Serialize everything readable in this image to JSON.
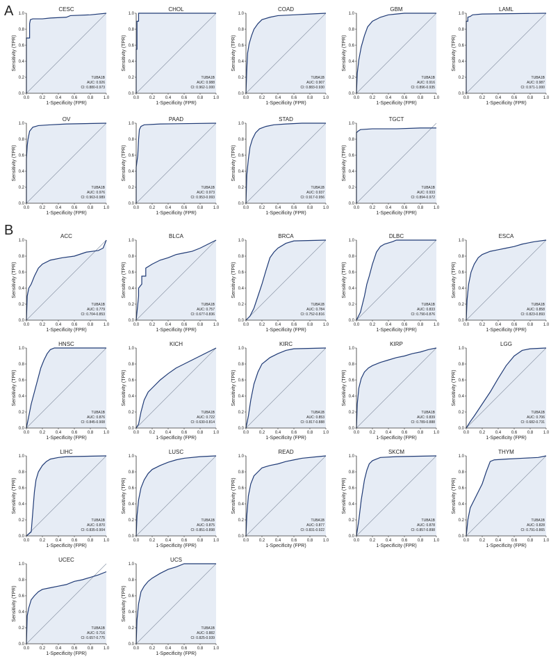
{
  "panels": [
    {
      "label": "A"
    },
    {
      "label": "B"
    }
  ],
  "style": {
    "line_color": "#1f3a75",
    "fill_color": "#e6ecf5",
    "diag_color": "#8c96a8"
  },
  "chart_data": [
    {
      "type": "line",
      "panel": "A",
      "title": "CESC",
      "xlabel": "1-Specificity (FPR)",
      "ylabel": "Sensitivity (TPR)",
      "xlim": [
        0,
        1
      ],
      "ylim": [
        0,
        1
      ],
      "annotation": {
        "gene": "TUBA1B",
        "auc": "AUC: 0.926",
        "ci": "CI: 0.880-0.973"
      },
      "x": [
        0,
        0,
        0.04,
        0.04,
        0.05,
        0.08,
        0.12,
        0.2,
        0.3,
        0.5,
        0.55,
        0.8,
        1
      ],
      "y": [
        0,
        0.69,
        0.69,
        0.87,
        0.92,
        0.93,
        0.93,
        0.93,
        0.94,
        0.95,
        0.97,
        0.98,
        1
      ]
    },
    {
      "type": "line",
      "panel": "A",
      "title": "CHOL",
      "xlabel": "1-Specificity (FPR)",
      "ylabel": "Sensitivity (TPR)",
      "xlim": [
        0,
        1
      ],
      "ylim": [
        0,
        1
      ],
      "annotation": {
        "gene": "TUBA1B",
        "auc": "AUC: 0.988",
        "ci": "CI: 0.962-1.000"
      },
      "x": [
        0,
        0,
        0.01,
        0.01,
        0.03,
        0.03,
        0.5,
        1
      ],
      "y": [
        0,
        0.55,
        0.55,
        0.9,
        0.9,
        1,
        1,
        1
      ]
    },
    {
      "type": "line",
      "panel": "A",
      "title": "COAD",
      "xlabel": "1-Specificity (FPR)",
      "ylabel": "Sensitivity (TPR)",
      "xlim": [
        0,
        1
      ],
      "ylim": [
        0,
        1
      ],
      "annotation": {
        "gene": "TUBA1B",
        "auc": "AUC: 0.907",
        "ci": "CI: 0.883-0.930"
      },
      "x": [
        0,
        0.01,
        0.02,
        0.04,
        0.07,
        0.1,
        0.15,
        0.2,
        0.3,
        0.4,
        0.6,
        0.8,
        1
      ],
      "y": [
        0,
        0.3,
        0.5,
        0.62,
        0.72,
        0.8,
        0.87,
        0.92,
        0.95,
        0.97,
        0.98,
        0.99,
        1
      ]
    },
    {
      "type": "line",
      "panel": "A",
      "title": "GBM",
      "xlabel": "1-Specificity (FPR)",
      "ylabel": "Sensitivity (TPR)",
      "xlim": [
        0,
        1
      ],
      "ylim": [
        0,
        1
      ],
      "annotation": {
        "gene": "TUBA1B",
        "auc": "AUC: 0.916",
        "ci": "CI: 0.896-0.935"
      },
      "x": [
        0,
        0.01,
        0.03,
        0.06,
        0.1,
        0.14,
        0.2,
        0.3,
        0.4,
        0.5,
        0.6,
        1
      ],
      "y": [
        0,
        0.25,
        0.42,
        0.58,
        0.72,
        0.83,
        0.9,
        0.95,
        0.98,
        0.99,
        1,
        1
      ]
    },
    {
      "type": "line",
      "panel": "A",
      "title": "LAML",
      "xlabel": "1-Specificity (FPR)",
      "ylabel": "Sensitivity (TPR)",
      "xlim": [
        0,
        1
      ],
      "ylim": [
        0,
        1
      ],
      "annotation": {
        "gene": "TUBA1B",
        "auc": "AUC: 0.987",
        "ci": "CI: 0.971-1.000"
      },
      "x": [
        0,
        0,
        0.02,
        0.02,
        0.05,
        0.08,
        0.2,
        1
      ],
      "y": [
        0,
        0.9,
        0.9,
        0.95,
        0.96,
        0.98,
        0.99,
        1
      ]
    },
    {
      "type": "line",
      "panel": "A",
      "title": "OV",
      "xlabel": "1-Specificity (FPR)",
      "ylabel": "Sensitivity (TPR)",
      "xlim": [
        0,
        1
      ],
      "ylim": [
        0,
        1
      ],
      "annotation": {
        "gene": "TUBA1B",
        "auc": "AUC: 0.976",
        "ci": "CI: 0.963-0.989"
      },
      "x": [
        0,
        0,
        0.01,
        0.02,
        0.04,
        0.08,
        0.15,
        0.3,
        0.5,
        1
      ],
      "y": [
        0,
        0.55,
        0.72,
        0.8,
        0.9,
        0.95,
        0.97,
        0.98,
        0.99,
        1
      ]
    },
    {
      "type": "line",
      "panel": "A",
      "title": "PAAD",
      "xlabel": "1-Specificity (FPR)",
      "ylabel": "Sensitivity (TPR)",
      "xlim": [
        0,
        1
      ],
      "ylim": [
        0,
        1
      ],
      "annotation": {
        "gene": "TUBA1B",
        "auc": "AUC: 0.973",
        "ci": "CI: 0.953-0.993"
      },
      "x": [
        0,
        0,
        0.02,
        0.03,
        0.04,
        0.06,
        0.1,
        0.3,
        1
      ],
      "y": [
        0,
        0.45,
        0.6,
        0.8,
        0.92,
        0.96,
        0.98,
        0.99,
        1
      ]
    },
    {
      "type": "line",
      "panel": "A",
      "title": "STAD",
      "xlabel": "1-Specificity (FPR)",
      "ylabel": "Sensitivity (TPR)",
      "xlim": [
        0,
        1
      ],
      "ylim": [
        0,
        1
      ],
      "annotation": {
        "gene": "TUBA1B",
        "auc": "AUC: 0.937",
        "ci": "CI: 0.917-0.956"
      },
      "x": [
        0,
        0.01,
        0.03,
        0.05,
        0.08,
        0.12,
        0.17,
        0.25,
        0.35,
        0.5,
        0.7,
        1
      ],
      "y": [
        0,
        0.35,
        0.55,
        0.7,
        0.8,
        0.88,
        0.93,
        0.96,
        0.98,
        0.99,
        1,
        1
      ]
    },
    {
      "type": "line",
      "panel": "A",
      "title": "TGCT",
      "xlabel": "1-Specificity (FPR)",
      "ylabel": "Sensitivity (TPR)",
      "xlim": [
        0,
        1
      ],
      "ylim": [
        0,
        1
      ],
      "annotation": {
        "gene": "TUBA1B",
        "auc": "AUC: 0.933",
        "ci": "CI: 0.894-0.972"
      },
      "x": [
        0,
        0,
        0.02,
        0.05,
        0.2,
        0.5,
        0.8,
        1
      ],
      "y": [
        0,
        0.88,
        0.9,
        0.92,
        0.93,
        0.93,
        0.94,
        0.94
      ]
    },
    {
      "type": "line",
      "panel": "B",
      "title": "ACC",
      "xlabel": "1-Specificity (FPR)",
      "ylabel": "Sensitivity (TPR)",
      "xlim": [
        0,
        1
      ],
      "ylim": [
        0,
        1
      ],
      "annotation": {
        "gene": "TUBA1B",
        "auc": "AUC: 0.779",
        "ci": "CI: 0.704-0.853"
      },
      "x": [
        0,
        0.01,
        0.03,
        0.06,
        0.1,
        0.15,
        0.2,
        0.3,
        0.45,
        0.6,
        0.75,
        0.9,
        0.96,
        1
      ],
      "y": [
        0,
        0.3,
        0.4,
        0.45,
        0.55,
        0.65,
        0.7,
        0.75,
        0.78,
        0.8,
        0.85,
        0.87,
        0.9,
        1
      ]
    },
    {
      "type": "line",
      "panel": "B",
      "title": "BLCA",
      "xlabel": "1-Specificity (FPR)",
      "ylabel": "Sensitivity (TPR)",
      "xlim": [
        0,
        1
      ],
      "ylim": [
        0,
        1
      ],
      "annotation": {
        "gene": "TUBA1B",
        "auc": "AUC: 0.757",
        "ci": "CI: 0.677-0.836"
      },
      "x": [
        0,
        0.03,
        0.03,
        0.07,
        0.07,
        0.12,
        0.12,
        0.2,
        0.3,
        0.4,
        0.5,
        0.6,
        0.7,
        0.8,
        0.9,
        1
      ],
      "y": [
        0,
        0.3,
        0.4,
        0.45,
        0.55,
        0.55,
        0.65,
        0.7,
        0.75,
        0.78,
        0.82,
        0.84,
        0.86,
        0.9,
        0.95,
        1
      ]
    },
    {
      "type": "line",
      "panel": "B",
      "title": "BRCA",
      "xlabel": "1-Specificity (FPR)",
      "ylabel": "Sensitivity (TPR)",
      "xlim": [
        0,
        1
      ],
      "ylim": [
        0,
        1
      ],
      "annotation": {
        "gene": "TUBA1B",
        "auc": "AUC: 0.784",
        "ci": "CI: 0.752-0.816"
      },
      "x": [
        0,
        0.05,
        0.1,
        0.15,
        0.2,
        0.25,
        0.3,
        0.35,
        0.4,
        0.5,
        0.6,
        1
      ],
      "y": [
        0,
        0.05,
        0.15,
        0.3,
        0.45,
        0.62,
        0.78,
        0.85,
        0.9,
        0.96,
        0.99,
        1
      ]
    },
    {
      "type": "line",
      "panel": "B",
      "title": "DLBC",
      "xlabel": "1-Specificity (FPR)",
      "ylabel": "Sensitivity (TPR)",
      "xlim": [
        0,
        1
      ],
      "ylim": [
        0,
        1
      ],
      "annotation": {
        "gene": "TUBA1B",
        "auc": "AUC: 0.833",
        "ci": "CI: 0.790-0.876"
      },
      "x": [
        0,
        0.05,
        0.1,
        0.13,
        0.16,
        0.2,
        0.25,
        0.3,
        0.35,
        0.45,
        0.5,
        1
      ],
      "y": [
        0,
        0.1,
        0.3,
        0.45,
        0.55,
        0.7,
        0.85,
        0.92,
        0.95,
        0.98,
        1,
        1
      ]
    },
    {
      "type": "line",
      "panel": "B",
      "title": "ESCA",
      "xlabel": "1-Specificity (FPR)",
      "ylabel": "Sensitivity (TPR)",
      "xlim": [
        0,
        1
      ],
      "ylim": [
        0,
        1
      ],
      "annotation": {
        "gene": "TUBA1B",
        "auc": "AUC: 0.858",
        "ci": "CI: 0.823-0.893"
      },
      "x": [
        0,
        0.01,
        0.03,
        0.06,
        0.1,
        0.15,
        0.2,
        0.3,
        0.4,
        0.5,
        0.6,
        0.7,
        0.85,
        1
      ],
      "y": [
        0,
        0.25,
        0.45,
        0.6,
        0.7,
        0.78,
        0.82,
        0.86,
        0.88,
        0.9,
        0.92,
        0.95,
        0.98,
        1
      ]
    },
    {
      "type": "line",
      "panel": "B",
      "title": "HNSC",
      "xlabel": "1-Specificity (FPR)",
      "ylabel": "Sensitivity (TPR)",
      "xlim": [
        0,
        1
      ],
      "ylim": [
        0,
        1
      ],
      "annotation": {
        "gene": "TUBA1B",
        "auc": "AUC: 0.876",
        "ci": "CI: 0.845-0.908"
      },
      "x": [
        0,
        0.03,
        0.06,
        0.1,
        0.14,
        0.18,
        0.22,
        0.26,
        0.3,
        0.35,
        1
      ],
      "y": [
        0,
        0.15,
        0.3,
        0.45,
        0.6,
        0.75,
        0.85,
        0.93,
        0.98,
        1,
        1
      ]
    },
    {
      "type": "line",
      "panel": "B",
      "title": "KICH",
      "xlabel": "1-Specificity (FPR)",
      "ylabel": "Sensitivity (TPR)",
      "xlim": [
        0,
        1
      ],
      "ylim": [
        0,
        1
      ],
      "annotation": {
        "gene": "TUBA1B",
        "auc": "AUC: 0.722",
        "ci": "CI: 0.630-0.814"
      },
      "x": [
        0,
        0.03,
        0.06,
        0.1,
        0.15,
        0.2,
        0.3,
        0.4,
        0.5,
        0.6,
        0.7,
        0.8,
        0.9,
        1
      ],
      "y": [
        0,
        0.05,
        0.2,
        0.35,
        0.45,
        0.5,
        0.6,
        0.68,
        0.75,
        0.8,
        0.85,
        0.9,
        0.95,
        1
      ]
    },
    {
      "type": "line",
      "panel": "B",
      "title": "KIRC",
      "xlabel": "1-Specificity (FPR)",
      "ylabel": "Sensitivity (TPR)",
      "xlim": [
        0,
        1
      ],
      "ylim": [
        0,
        1
      ],
      "annotation": {
        "gene": "TUBA1B",
        "auc": "AUC: 0.853",
        "ci": "CI: 0.817-0.888"
      },
      "x": [
        0,
        0.03,
        0.06,
        0.1,
        0.15,
        0.2,
        0.3,
        0.4,
        0.5,
        0.6,
        1
      ],
      "y": [
        0,
        0.15,
        0.35,
        0.55,
        0.7,
        0.8,
        0.88,
        0.93,
        0.97,
        0.99,
        1
      ]
    },
    {
      "type": "line",
      "panel": "B",
      "title": "KIRP",
      "xlabel": "1-Specificity (FPR)",
      "ylabel": "Sensitivity (TPR)",
      "xlim": [
        0,
        1
      ],
      "ylim": [
        0,
        1
      ],
      "annotation": {
        "gene": "TUBA1B",
        "auc": "AUC: 0.839",
        "ci": "CI: 0.789-0.888"
      },
      "x": [
        0,
        0.01,
        0.03,
        0.06,
        0.1,
        0.15,
        0.2,
        0.3,
        0.4,
        0.5,
        0.6,
        0.7,
        0.8,
        0.9,
        1
      ],
      "y": [
        0,
        0.3,
        0.5,
        0.62,
        0.7,
        0.75,
        0.78,
        0.82,
        0.85,
        0.88,
        0.9,
        0.93,
        0.95,
        0.98,
        1
      ]
    },
    {
      "type": "line",
      "panel": "B",
      "title": "LGG",
      "xlabel": "1-Specificity (FPR)",
      "ylabel": "Sensitivity (TPR)",
      "xlim": [
        0,
        1
      ],
      "ylim": [
        0,
        1
      ],
      "annotation": {
        "gene": "TUBA1B",
        "auc": "AUC: 0.706",
        "ci": "CI: 0.682-0.731"
      },
      "x": [
        0,
        0.05,
        0.1,
        0.2,
        0.3,
        0.4,
        0.5,
        0.6,
        0.7,
        0.8,
        1
      ],
      "y": [
        0,
        0.08,
        0.15,
        0.3,
        0.45,
        0.62,
        0.78,
        0.9,
        0.97,
        0.99,
        1
      ]
    },
    {
      "type": "line",
      "panel": "B",
      "title": "LIHC",
      "xlabel": "1-Specificity (FPR)",
      "ylabel": "Sensitivity (TPR)",
      "xlim": [
        0,
        1
      ],
      "ylim": [
        0,
        1
      ],
      "annotation": {
        "gene": "TUBA1B",
        "auc": "AUC: 0.870",
        "ci": "CI: 0.835-0.904"
      },
      "x": [
        0,
        0.06,
        0.08,
        0.1,
        0.12,
        0.15,
        0.2,
        0.25,
        0.3,
        0.4,
        0.5,
        1
      ],
      "y": [
        0,
        0.05,
        0.3,
        0.55,
        0.7,
        0.8,
        0.88,
        0.93,
        0.96,
        0.98,
        0.99,
        1
      ]
    },
    {
      "type": "line",
      "panel": "B",
      "title": "LUSC",
      "xlabel": "1-Specificity (FPR)",
      "ylabel": "Sensitivity (TPR)",
      "xlim": [
        0,
        1
      ],
      "ylim": [
        0,
        1
      ],
      "annotation": {
        "gene": "TUBA1B",
        "auc": "AUC: 0.875",
        "ci": "CI: 0.851-0.898"
      },
      "x": [
        0,
        0.01,
        0.03,
        0.06,
        0.1,
        0.15,
        0.2,
        0.3,
        0.4,
        0.5,
        0.6,
        0.8,
        1
      ],
      "y": [
        0,
        0.25,
        0.45,
        0.6,
        0.7,
        0.78,
        0.83,
        0.88,
        0.92,
        0.95,
        0.97,
        0.99,
        1
      ]
    },
    {
      "type": "line",
      "panel": "B",
      "title": "READ",
      "xlabel": "1-Specificity (FPR)",
      "ylabel": "Sensitivity (TPR)",
      "xlim": [
        0,
        1
      ],
      "ylim": [
        0,
        1
      ],
      "annotation": {
        "gene": "TUBA1B",
        "auc": "AUC: 0.877",
        "ci": "CI: 0.831-0.922"
      },
      "x": [
        0,
        0.01,
        0.03,
        0.06,
        0.1,
        0.15,
        0.2,
        0.3,
        0.4,
        0.5,
        0.6,
        0.7,
        0.9,
        1
      ],
      "y": [
        0,
        0.25,
        0.5,
        0.65,
        0.75,
        0.8,
        0.85,
        0.88,
        0.9,
        0.93,
        0.95,
        0.97,
        0.99,
        1
      ]
    },
    {
      "type": "line",
      "panel": "B",
      "title": "SKCM",
      "xlabel": "1-Specificity (FPR)",
      "ylabel": "Sensitivity (TPR)",
      "xlim": [
        0,
        1
      ],
      "ylim": [
        0,
        1
      ],
      "annotation": {
        "gene": "TUBA1B",
        "auc": "AUC: 0.878",
        "ci": "CI: 0.857-0.898"
      },
      "x": [
        0,
        0.03,
        0.06,
        0.1,
        0.13,
        0.16,
        0.2,
        0.25,
        0.3,
        0.5,
        1
      ],
      "y": [
        0,
        0.2,
        0.45,
        0.7,
        0.82,
        0.9,
        0.94,
        0.96,
        0.98,
        0.99,
        1
      ]
    },
    {
      "type": "line",
      "panel": "B",
      "title": "THYM",
      "xlabel": "1-Specificity (FPR)",
      "ylabel": "Sensitivity (TPR)",
      "xlim": [
        0,
        1
      ],
      "ylim": [
        0,
        1
      ],
      "annotation": {
        "gene": "TUBA1B",
        "auc": "AUC: 0.828",
        "ci": "CI: 0.791-0.865"
      },
      "x": [
        0,
        0.02,
        0.05,
        0.1,
        0.15,
        0.2,
        0.25,
        0.3,
        0.35,
        0.5,
        0.7,
        0.9,
        1
      ],
      "y": [
        0,
        0.2,
        0.35,
        0.45,
        0.55,
        0.65,
        0.8,
        0.93,
        0.95,
        0.96,
        0.97,
        0.98,
        1
      ]
    },
    {
      "type": "line",
      "panel": "B",
      "title": "UCEC",
      "xlabel": "1-Specificity (FPR)",
      "ylabel": "Sensitivity (TPR)",
      "xlim": [
        0,
        1
      ],
      "ylim": [
        0,
        1
      ],
      "annotation": {
        "gene": "TUBA1B",
        "auc": "AUC: 0.716",
        "ci": "CI: 0.657-0.775"
      },
      "x": [
        0,
        0.01,
        0.03,
        0.06,
        0.1,
        0.15,
        0.2,
        0.3,
        0.4,
        0.5,
        0.6,
        0.7,
        0.8,
        0.9,
        1
      ],
      "y": [
        0,
        0.35,
        0.45,
        0.55,
        0.6,
        0.65,
        0.68,
        0.7,
        0.72,
        0.74,
        0.78,
        0.8,
        0.83,
        0.86,
        0.9
      ]
    },
    {
      "type": "line",
      "panel": "B",
      "title": "UCS",
      "xlabel": "1-Specificity (FPR)",
      "ylabel": "Sensitivity (TPR)",
      "xlim": [
        0,
        1
      ],
      "ylim": [
        0,
        1
      ],
      "annotation": {
        "gene": "TUBA1B",
        "auc": "AUC: 0.882",
        "ci": "CI: 0.825-0.939"
      },
      "x": [
        0,
        0.01,
        0.03,
        0.06,
        0.1,
        0.15,
        0.2,
        0.3,
        0.4,
        0.5,
        0.6,
        1
      ],
      "y": [
        0,
        0.3,
        0.5,
        0.65,
        0.72,
        0.78,
        0.82,
        0.88,
        0.93,
        0.96,
        1,
        1
      ]
    }
  ]
}
